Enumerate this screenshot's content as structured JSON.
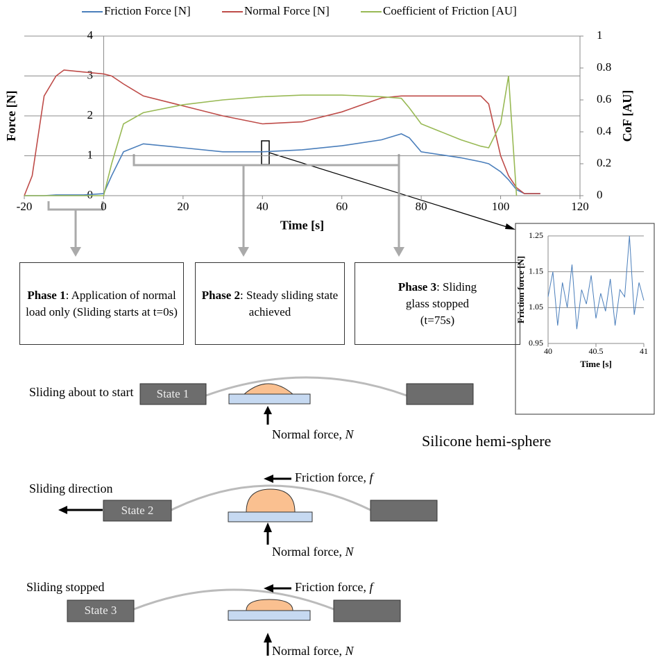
{
  "chart_data": [
    {
      "type": "line",
      "xlabel": "Time [s]",
      "ylabel": "Force [N]",
      "y2label": "CoF [AU]",
      "x": [
        -20,
        -18,
        -15,
        -12,
        -10,
        -5,
        0,
        2,
        5,
        10,
        20,
        30,
        40,
        50,
        60,
        70,
        75,
        77,
        80,
        90,
        95,
        97,
        100,
        102,
        104,
        106,
        110
      ],
      "series": [
        {
          "name": "Friction Force [N]",
          "color": "#4a7ebb",
          "values": [
            0,
            0,
            0,
            0.02,
            0.02,
            0.02,
            0.05,
            0.5,
            1.1,
            1.3,
            1.2,
            1.1,
            1.1,
            1.15,
            1.25,
            1.4,
            1.55,
            1.45,
            1.1,
            0.95,
            0.85,
            0.8,
            0.6,
            0.4,
            0.15,
            0.05,
            0.05
          ]
        },
        {
          "name": "Normal Force [N]",
          "color": "#be4b48",
          "values": [
            0,
            0.5,
            2.5,
            3.0,
            3.15,
            3.1,
            3.05,
            3.0,
            2.8,
            2.5,
            2.25,
            2.0,
            1.8,
            1.85,
            2.1,
            2.45,
            2.5,
            2.5,
            2.5,
            2.5,
            2.5,
            2.3,
            1.0,
            0.5,
            0.2,
            0.05,
            0.05
          ]
        },
        {
          "name": "Coefficient of Friction [AU]",
          "color": "#98b954",
          "axis": "y2",
          "values": [
            0,
            0,
            0,
            0,
            0,
            0,
            0,
            0.2,
            0.45,
            0.52,
            0.57,
            0.6,
            0.62,
            0.63,
            0.63,
            0.62,
            0.61,
            0.55,
            0.45,
            0.35,
            0.31,
            0.3,
            0.45,
            0.75,
            0,
            null,
            null
          ]
        }
      ],
      "xlim": [
        -20,
        120
      ],
      "xticks": [
        -20,
        0,
        20,
        40,
        60,
        80,
        100,
        120
      ],
      "ylim": [
        0,
        4
      ],
      "yticks": [
        0,
        1,
        2,
        3,
        4
      ],
      "y2lim": [
        0,
        1
      ],
      "y2ticks": [
        0,
        0.2,
        0.4,
        0.6,
        0.8,
        1
      ],
      "grid": true,
      "legend": "top"
    },
    {
      "type": "line",
      "xlabel": "Time [s]",
      "ylabel": "Friction force [N]",
      "x": [
        40,
        40.05,
        40.1,
        40.15,
        40.2,
        40.25,
        40.3,
        40.35,
        40.4,
        40.45,
        40.5,
        40.55,
        40.6,
        40.65,
        40.7,
        40.75,
        40.8,
        40.85,
        40.9,
        40.95,
        41
      ],
      "series": [
        {
          "color": "#4a7ebb",
          "values": [
            1.08,
            1.15,
            1.0,
            1.12,
            1.05,
            1.17,
            0.99,
            1.1,
            1.06,
            1.14,
            1.02,
            1.09,
            1.04,
            1.13,
            1.0,
            1.1,
            1.08,
            1.25,
            1.03,
            1.12,
            1.07
          ]
        }
      ],
      "xlim": [
        40,
        41
      ],
      "xticks": [
        40,
        40.5,
        41
      ],
      "ylim": [
        0.95,
        1.25
      ],
      "yticks": [
        0.95,
        1.05,
        1.15,
        1.25
      ],
      "grid": true
    }
  ],
  "phases": [
    {
      "label": "Phase 1",
      "text": ": Application of normal load only (Sliding starts at t=0s)"
    },
    {
      "label": "Phase 2",
      "text": ": Steady sliding state achieved"
    },
    {
      "label": "Phase 3",
      "text": ": Sliding glass stopped (t=75s)"
    }
  ],
  "states": [
    {
      "caption": "Sliding about to start",
      "name": "State 1",
      "normal": "Normal force, ",
      "normal_symbol": "N",
      "part": "Silicone hemi-sphere"
    },
    {
      "caption": "Sliding direction",
      "name": "State 2",
      "normal": "Normal force, ",
      "normal_symbol": "N",
      "friction": "Friction force, ",
      "friction_symbol": "f"
    },
    {
      "caption": "Sliding stopped",
      "name": "State 3",
      "normal": "Normal force, ",
      "normal_symbol": "N",
      "friction": "Friction force, ",
      "friction_symbol": "f"
    }
  ]
}
